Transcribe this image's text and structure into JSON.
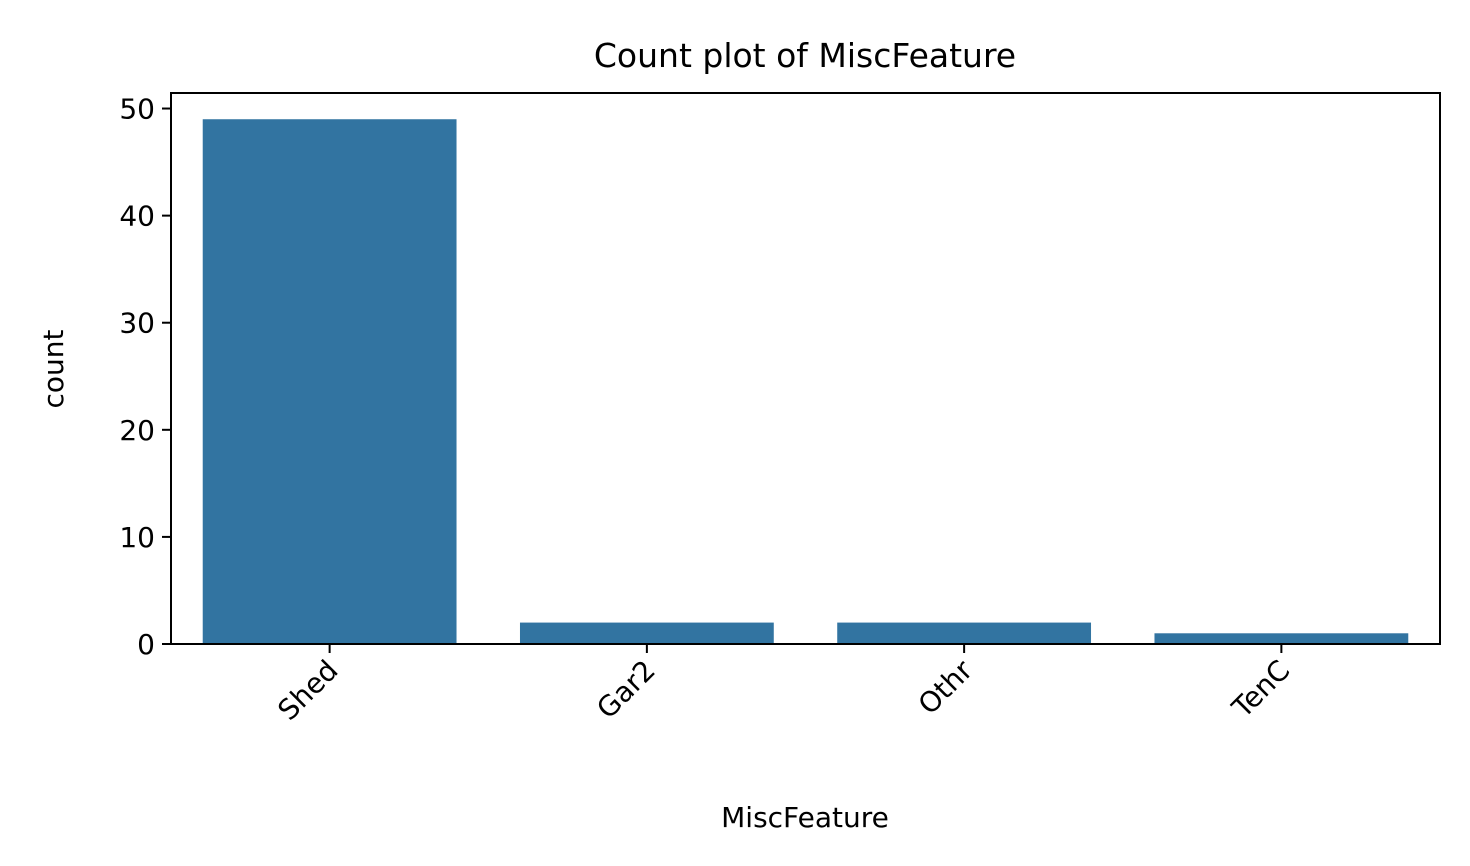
{
  "chart_data": {
    "type": "bar",
    "title": "Count plot of MiscFeature",
    "xlabel": "MiscFeature",
    "ylabel": "count",
    "categories": [
      "Shed",
      "Gar2",
      "Othr",
      "TenC"
    ],
    "values": [
      49,
      2,
      2,
      1
    ],
    "ylim": [
      0,
      51.45
    ],
    "yticks": [
      0,
      10,
      20,
      30,
      40,
      50
    ],
    "xtick_rotation_deg": 45,
    "grid": false,
    "legend": "none",
    "bar_color": "#3274a1"
  }
}
